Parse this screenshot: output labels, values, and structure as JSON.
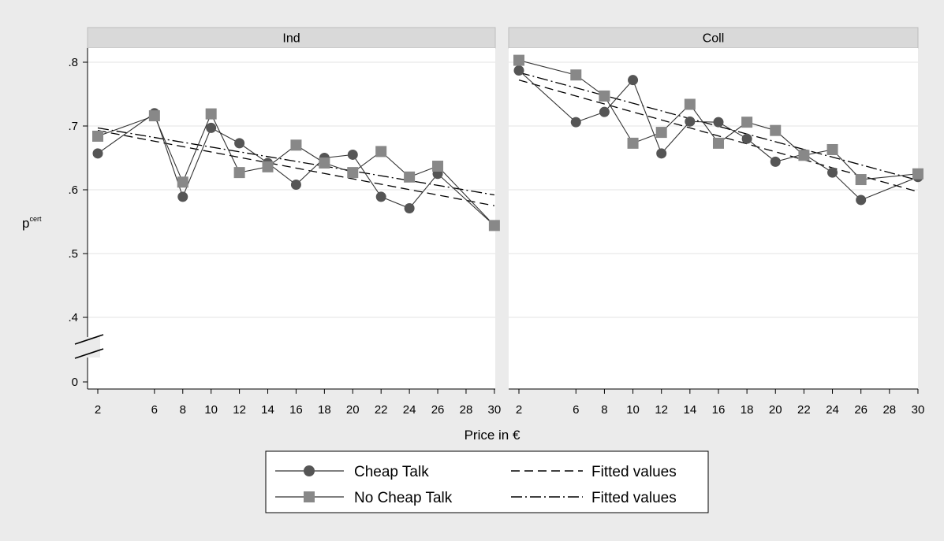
{
  "chart_data": {
    "type": "line",
    "xlabel": "Price in €",
    "ylabel": "p",
    "ylabel_superscript": "cert",
    "x_ticks": [
      2,
      6,
      8,
      10,
      12,
      14,
      16,
      18,
      20,
      22,
      24,
      26,
      28,
      30
    ],
    "y_ticks": [
      {
        "label": "0",
        "value": 0
      },
      {
        "label": ".4",
        "value": 0.4
      },
      {
        "label": ".5",
        "value": 0.5
      },
      {
        "label": ".6",
        "value": 0.6
      },
      {
        "label": ".7",
        "value": 0.7
      },
      {
        "label": ".8",
        "value": 0.8
      }
    ],
    "axis_break": "between 0 and .4",
    "grid": true,
    "legend_position": "bottom",
    "legend": [
      {
        "label": "Cheap Talk",
        "style": "line-circle"
      },
      {
        "label": "Fitted values",
        "style": "dash"
      },
      {
        "label": "No Cheap Talk",
        "style": "line-square"
      },
      {
        "label": "Fitted values",
        "style": "dash-dot"
      }
    ],
    "colors": {
      "background": "#ebebeb",
      "plot_area": "#ffffff",
      "panel_header": "#d9d9d9",
      "markers": "#555555",
      "series_line": "#333333"
    },
    "panels": [
      {
        "title": "Ind",
        "series": [
          {
            "name": "Cheap Talk",
            "x": [
              2,
              6,
              8,
              10,
              12,
              14,
              16,
              18,
              20,
              22,
              24,
              26,
              30
            ],
            "y": [
              0.657,
              0.72,
              0.589,
              0.697,
              0.673,
              0.642,
              0.608,
              0.65,
              0.655,
              0.589,
              0.571,
              0.625,
              0.544
            ]
          },
          {
            "name": "No Cheap Talk",
            "x": [
              2,
              6,
              8,
              10,
              12,
              14,
              16,
              18,
              20,
              22,
              24,
              26,
              30
            ],
            "y": [
              0.684,
              0.716,
              0.612,
              0.719,
              0.627,
              0.636,
              0.67,
              0.642,
              0.627,
              0.66,
              0.62,
              0.637,
              0.544
            ]
          }
        ],
        "fits": [
          {
            "name": "Fitted values",
            "style": "dash",
            "x": [
              2,
              30
            ],
            "y": [
              0.693,
              0.575
            ]
          },
          {
            "name": "Fitted values",
            "style": "dash-dot",
            "x": [
              2,
              30
            ],
            "y": [
              0.697,
              0.592
            ]
          }
        ]
      },
      {
        "title": "Coll",
        "series": [
          {
            "name": "Cheap Talk",
            "x": [
              2,
              6,
              8,
              10,
              12,
              14,
              16,
              18,
              20,
              22,
              24,
              26,
              30
            ],
            "y": [
              0.787,
              0.706,
              0.722,
              0.772,
              0.657,
              0.707,
              0.706,
              0.68,
              0.644,
              0.656,
              0.627,
              0.584,
              0.62
            ]
          },
          {
            "name": "No Cheap Talk",
            "x": [
              2,
              6,
              8,
              10,
              12,
              14,
              16,
              18,
              20,
              22,
              24,
              26,
              30
            ],
            "y": [
              0.803,
              0.78,
              0.747,
              0.673,
              0.69,
              0.734,
              0.673,
              0.706,
              0.693,
              0.654,
              0.663,
              0.616,
              0.625
            ]
          }
        ],
        "fits": [
          {
            "name": "Fitted values",
            "style": "dash",
            "x": [
              2,
              30
            ],
            "y": [
              0.772,
              0.597
            ]
          },
          {
            "name": "Fitted values",
            "style": "dash-dot",
            "x": [
              2,
              30
            ],
            "y": [
              0.784,
              0.615
            ]
          }
        ]
      }
    ]
  }
}
